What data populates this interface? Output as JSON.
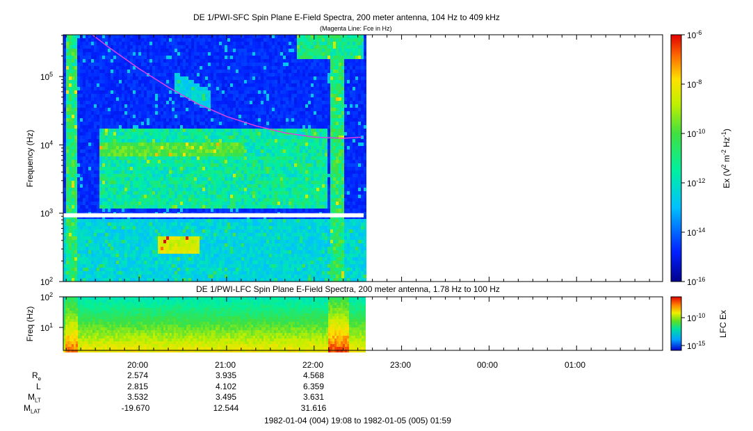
{
  "colors": {
    "magenta_line": "#e040e0",
    "gap": "#ffffff"
  },
  "chart_data": [
    {
      "type": "heatmap",
      "title": "DE 1/PWI-SFC  Spin Plane E-Field Spectra, 200 meter antenna, 104 Hz to 409 kHz",
      "subtitle": "(Magenta Line: Fce in Hz)",
      "ylabel": "Frequency (Hz)",
      "yscale": "log",
      "ylim": [
        100,
        409000
      ],
      "yticks": [
        100,
        1000,
        10000,
        100000
      ],
      "ytick_labels": [
        {
          "base": "10",
          "exp": "2"
        },
        {
          "base": "10",
          "exp": "3"
        },
        {
          "base": "10",
          "exp": "4"
        },
        {
          "base": "10",
          "exp": "5"
        }
      ],
      "xlim": [
        "19:08",
        "01:59"
      ],
      "data_end": "22:34",
      "gap_band_hz": [
        870,
        1000
      ],
      "fce_line": {
        "name": "Fce",
        "x": [
          "19:28",
          "19:40",
          "20:00",
          "20:20",
          "20:40",
          "21:00",
          "21:20",
          "21:40",
          "22:00",
          "22:20",
          "22:33"
        ],
        "y": [
          409000,
          260000,
          130000,
          70000,
          40000,
          26000,
          19000,
          15000,
          13000,
          12500,
          13000
        ]
      },
      "colorbar": {
        "label": {
          "prefix": "Ex (V",
          "sup1": "2",
          "mid1": " m",
          "sup2": "-2",
          "mid2": " Hz",
          "sup3": "-1",
          "suffix": ")"
        },
        "scale": "log",
        "range": [
          1e-16,
          1e-06
        ],
        "ticks": [
          {
            "base": "10",
            "exp": "-6"
          },
          {
            "base": "10",
            "exp": "-8"
          },
          {
            "base": "10",
            "exp": "-10"
          },
          {
            "base": "10",
            "exp": "-12"
          },
          {
            "base": "10",
            "exp": "-14"
          },
          {
            "base": "10",
            "exp": "-16"
          }
        ]
      }
    },
    {
      "type": "heatmap",
      "title": "DE 1/PWI-LFC  Spin Plane E-Field Spectra, 200 meter antenna, 1.78 Hz to 100 Hz",
      "ylabel": "Freq (Hz)",
      "yscale": "log",
      "ylim": [
        1.78,
        100
      ],
      "yticks": [
        10,
        100
      ],
      "ytick_labels": [
        {
          "base": "10",
          "exp": "1"
        },
        {
          "base": "10",
          "exp": "2"
        }
      ],
      "xlim": [
        "19:08",
        "01:59"
      ],
      "data_end": "22:34",
      "colorbar": {
        "label": "LFC Ex",
        "scale": "log",
        "ticks": [
          {
            "base": "10",
            "exp": "-10"
          },
          {
            "base": "10",
            "exp": "-15"
          }
        ]
      }
    }
  ],
  "x_axis": {
    "tick_labels": [
      "20:00",
      "21:00",
      "22:00",
      "23:00",
      "00:00",
      "01:00"
    ]
  },
  "ephemeris": {
    "rows": [
      {
        "label": "R",
        "sub": "e",
        "values": [
          "2.574",
          "3.935",
          "4.568"
        ]
      },
      {
        "label": "L",
        "sub": "",
        "values": [
          "2.815",
          "4.102",
          "6.359"
        ]
      },
      {
        "label": "M",
        "sub": "LT",
        "values": [
          "3.532",
          "3.495",
          "3.631"
        ]
      },
      {
        "label": "M",
        "sub": "LAT",
        "values": [
          "-19.670",
          "12.544",
          "31.616"
        ]
      }
    ]
  },
  "time_range": "1982-01-04 (004) 19:08 to 1982-01-05 (005) 01:59"
}
